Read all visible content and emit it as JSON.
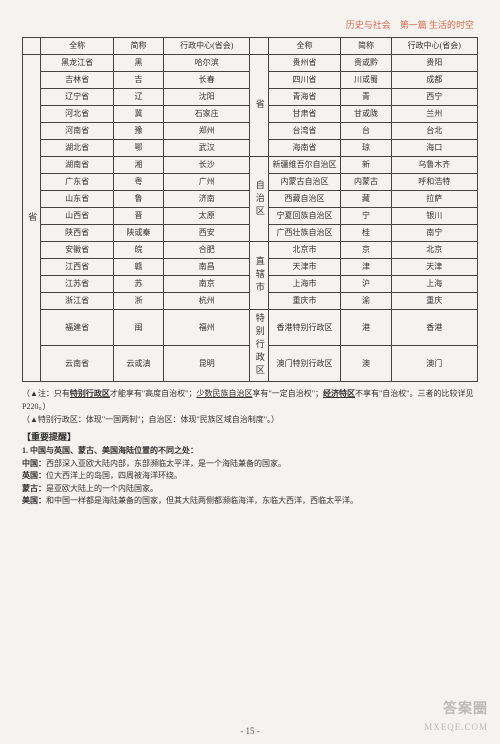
{
  "header": "历史与社会　第一篇 生活的时空",
  "table": {
    "headers": [
      "全称",
      "简称",
      "行政中心(省会)",
      "全称",
      "简称",
      "行政中心(省会)"
    ],
    "left_cat": "省",
    "left_rows": [
      [
        "黑龙江省",
        "黑",
        "哈尔滨"
      ],
      [
        "吉林省",
        "吉",
        "长春"
      ],
      [
        "辽宁省",
        "辽",
        "沈阳"
      ],
      [
        "河北省",
        "冀",
        "石家庄"
      ],
      [
        "河南省",
        "豫",
        "郑州"
      ],
      [
        "湖北省",
        "鄂",
        "武汉"
      ],
      [
        "湖南省",
        "湘",
        "长沙"
      ],
      [
        "广东省",
        "粤",
        "广州"
      ],
      [
        "山东省",
        "鲁",
        "济南"
      ],
      [
        "山西省",
        "晋",
        "太原"
      ],
      [
        "陕西省",
        "陕或秦",
        "西安"
      ],
      [
        "安徽省",
        "皖",
        "合肥"
      ],
      [
        "江西省",
        "赣",
        "南昌"
      ],
      [
        "江苏省",
        "苏",
        "南京"
      ],
      [
        "浙江省",
        "浙",
        "杭州"
      ],
      [
        "福建省",
        "闽",
        "福州"
      ],
      [
        "云南省",
        "云或滇",
        "昆明"
      ]
    ],
    "right_groups": [
      {
        "cat": "省",
        "rows": [
          [
            "贵州省",
            "贵或黔",
            "贵阳"
          ],
          [
            "四川省",
            "川或蜀",
            "成都"
          ],
          [
            "青海省",
            "青",
            "西宁"
          ],
          [
            "甘肃省",
            "甘或陇",
            "兰州"
          ],
          [
            "台湾省",
            "台",
            "台北"
          ],
          [
            "海南省",
            "琼",
            "海口"
          ]
        ]
      },
      {
        "cat": "自治区",
        "rows": [
          [
            "新疆维吾尔自治区",
            "新",
            "乌鲁木齐"
          ],
          [
            "内蒙古自治区",
            "内蒙古",
            "呼和浩特"
          ],
          [
            "西藏自治区",
            "藏",
            "拉萨"
          ],
          [
            "宁夏回族自治区",
            "宁",
            "银川"
          ],
          [
            "广西壮族自治区",
            "桂",
            "南宁"
          ]
        ]
      },
      {
        "cat": "直辖市",
        "rows": [
          [
            "北京市",
            "京",
            "北京"
          ],
          [
            "天津市",
            "津",
            "天津"
          ],
          [
            "上海市",
            "沪",
            "上海"
          ],
          [
            "重庆市",
            "渝",
            "重庆"
          ]
        ]
      },
      {
        "cat": "特别行政区",
        "rows": [
          [
            "香港特别行政区",
            "港",
            "香港"
          ],
          [
            "澳门特别行政区",
            "澳",
            "澳门"
          ]
        ]
      }
    ]
  },
  "notes": {
    "n1_a": "（▲注：只有",
    "n1_b": "特别行政区",
    "n1_c": "才能享有\"高度自治权\"；",
    "n1_d": "少数民族自治区",
    "n1_e": "享有\"一定自治权\"；",
    "n1_f": "经济特区",
    "n1_g": "不享有\"自治权\"。三者的比较详见P220。）",
    "n2": "（▲特别行政区：体现\"一国两制\"；自治区：体现\"民族区域自治制度\"。）"
  },
  "reminder_label": "【重要提醒】",
  "q1_title": "1. 中国与英国、蒙古、美国海陆位置的不同之处：",
  "q1_china_label": "中国：",
  "q1_china": "西部深入亚欧大陆内部，东部濒临太平洋，是一个海陆兼备的国家。",
  "q1_uk_label": "英国：",
  "q1_uk": "位大西洋上的岛国，四周被海洋环绕。",
  "q1_mongolia_label": "蒙古：",
  "q1_mongolia": "是亚欧大陆上的一个内陆国家。",
  "q1_us_label": "美国：",
  "q1_us": "和中国一样都是海陆兼备的国家，但其大陆两侧都濒临海洋，东临大西洋，西临太平洋。",
  "pagenum": "- 15 -",
  "watermark_main": "答案圈",
  "watermark_sub": "MXEQE.COM",
  "colwidths": {
    "cat": "4%",
    "full": "16%",
    "abbr": "11%",
    "cap": "19%"
  }
}
